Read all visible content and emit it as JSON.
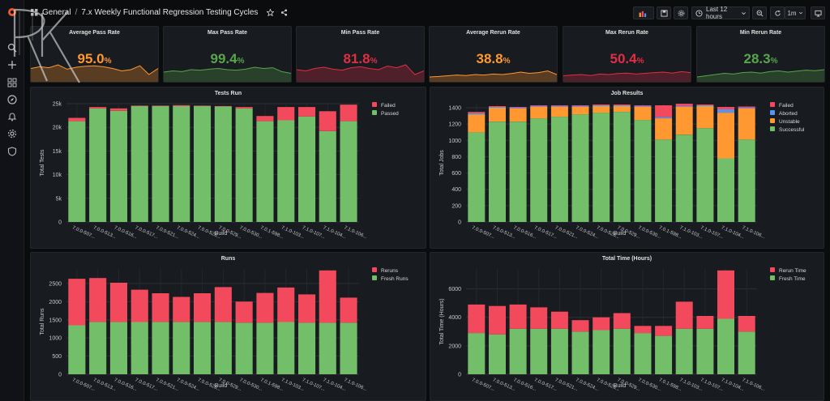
{
  "header": {
    "folder": "General",
    "separator": "/",
    "dashboard_title": "7.x Weekly Functional Regression Testing Cycles",
    "time_range": "Last 12 hours",
    "refresh_interval": "1m"
  },
  "stats": [
    {
      "title": "Average Pass Rate",
      "value": "95.0",
      "unit": "%",
      "color": "#ff9830",
      "spark": [
        0.55,
        0.62,
        0.58,
        0.7,
        0.52,
        0.6,
        0.64,
        0.66,
        0.62,
        0.55,
        0.45,
        0.5,
        0.66,
        0.3,
        0.55
      ]
    },
    {
      "title": "Max Pass Rate",
      "value": "99.4",
      "unit": "%",
      "color": "#56a64b",
      "spark": [
        0.4,
        0.45,
        0.42,
        0.5,
        0.48,
        0.52,
        0.55,
        0.5,
        0.48,
        0.52,
        0.6,
        0.55,
        0.58,
        0.42,
        0.35
      ]
    },
    {
      "title": "Min Pass Rate",
      "value": "81.8",
      "unit": "%",
      "color": "#e02f44",
      "spark": [
        0.5,
        0.45,
        0.55,
        0.6,
        0.52,
        0.48,
        0.58,
        0.62,
        0.55,
        0.5,
        0.65,
        0.58,
        0.7,
        0.3,
        0.45
      ]
    },
    {
      "title": "Average Rerun Rate",
      "value": "38.8",
      "unit": "%",
      "color": "#ff9830",
      "spark": [
        0.2,
        0.22,
        0.25,
        0.28,
        0.26,
        0.3,
        0.28,
        0.32,
        0.3,
        0.34,
        0.4,
        0.35,
        0.38,
        0.45,
        0.3
      ]
    },
    {
      "title": "Max Rerun Rate",
      "value": "50.4",
      "unit": "%",
      "color": "#e02f44",
      "spark": [
        0.25,
        0.28,
        0.3,
        0.26,
        0.32,
        0.3,
        0.34,
        0.36,
        0.32,
        0.35,
        0.38,
        0.4,
        0.36,
        0.42,
        0.38
      ]
    },
    {
      "title": "Min Rerun Rate",
      "value": "28.3",
      "unit": "%",
      "color": "#56a64b",
      "spark": [
        0.2,
        0.25,
        0.3,
        0.35,
        0.32,
        0.38,
        0.4,
        0.36,
        0.42,
        0.45,
        0.4,
        0.44,
        0.48,
        0.46,
        0.5
      ]
    }
  ],
  "chart_data": [
    {
      "type": "bar",
      "title": "Tests Run",
      "xlabel": "Build",
      "ylabel": "Total Tests",
      "ylim": [
        0,
        25000
      ],
      "yticks": [
        0,
        5000,
        10000,
        15000,
        20000,
        25000
      ],
      "ytick_labels": [
        "0",
        "5k",
        "10k",
        "15k",
        "20k",
        "25k"
      ],
      "categories": [
        "7.0.0-507...",
        "7.0.0-513...",
        "7.0.0-516...",
        "7.0.0-517...",
        "7.0.0-521...",
        "7.0.0-524...",
        "7.0.0-526...",
        "7.0.0-529...",
        "7.0.0-530...",
        "7.0.1-598...",
        "7.1.0-103...",
        "7.1.0-107...",
        "7.1.0-104...",
        "7.1.0-106..."
      ],
      "series": [
        {
          "name": "Passed",
          "color": "#73bf69",
          "values": [
            21300,
            24000,
            23500,
            24500,
            24500,
            24500,
            24500,
            24400,
            24000,
            21300,
            21500,
            22300,
            19200,
            21300
          ]
        },
        {
          "name": "Failed",
          "color": "#f2495c",
          "values": [
            700,
            300,
            500,
            100,
            100,
            200,
            100,
            100,
            300,
            1100,
            2800,
            2000,
            4200,
            3500
          ]
        }
      ],
      "legend": [
        "Failed",
        "Passed"
      ]
    },
    {
      "type": "bar",
      "title": "Job Results",
      "xlabel": "Build",
      "ylabel": "Total Jobs",
      "ylim": [
        0,
        1450
      ],
      "yticks": [
        0,
        200,
        400,
        600,
        800,
        1000,
        1200,
        1400
      ],
      "ytick_labels": [
        "0",
        "200",
        "400",
        "600",
        "800",
        "1000",
        "1200",
        "1400"
      ],
      "categories": [
        "7.0.0-507...",
        "7.0.0-513...",
        "7.0.0-516...",
        "7.0.0-517...",
        "7.0.0-521...",
        "7.0.0-524...",
        "7.0.0-526...",
        "7.0.0-529...",
        "7.0.0-530...",
        "7.0.1-598...",
        "7.1.0-103...",
        "7.1.0-107...",
        "7.1.0-104...",
        "7.1.0-106..."
      ],
      "series": [
        {
          "name": "Successful",
          "color": "#73bf69",
          "values": [
            1100,
            1230,
            1230,
            1270,
            1290,
            1320,
            1340,
            1350,
            1250,
            1010,
            1070,
            1150,
            780,
            1010
          ]
        },
        {
          "name": "Unstable",
          "color": "#ff9830",
          "values": [
            220,
            170,
            160,
            140,
            120,
            90,
            80,
            70,
            160,
            260,
            340,
            270,
            560,
            380
          ]
        },
        {
          "name": "Aborted",
          "color": "#5794f2",
          "values": [
            15,
            10,
            10,
            10,
            10,
            10,
            10,
            10,
            10,
            15,
            10,
            10,
            40,
            10
          ]
        },
        {
          "name": "Failed",
          "color": "#f2495c",
          "values": [
            15,
            10,
            10,
            10,
            10,
            10,
            10,
            10,
            10,
            145,
            30,
            10,
            30,
            15
          ]
        }
      ],
      "legend": [
        "Failed",
        "Aborted",
        "Unstable",
        "Successful"
      ]
    },
    {
      "type": "bar",
      "title": "Runs",
      "xlabel": "Build",
      "ylabel": "Total Runs",
      "ylim": [
        0,
        2900
      ],
      "yticks": [
        0,
        500,
        1000,
        1500,
        2000,
        2500
      ],
      "ytick_labels": [
        "0",
        "500",
        "1000",
        "1500",
        "2000",
        "2500"
      ],
      "categories": [
        "7.0.0-507...",
        "7.0.0-513...",
        "7.0.0-516...",
        "7.0.0-517...",
        "7.0.0-521...",
        "7.0.0-524...",
        "7.0.0-526...",
        "7.0.0-529...",
        "7.0.0-530...",
        "7.0.1-598...",
        "7.1.0-103...",
        "7.1.0-107...",
        "7.1.0-104...",
        "7.1.0-106..."
      ],
      "series": [
        {
          "name": "Fresh Runs",
          "color": "#73bf69",
          "values": [
            1350,
            1440,
            1440,
            1440,
            1440,
            1440,
            1440,
            1440,
            1420,
            1420,
            1440,
            1420,
            1420,
            1420
          ]
        },
        {
          "name": "Reruns",
          "color": "#f2495c",
          "values": [
            1280,
            1210,
            1080,
            890,
            790,
            690,
            790,
            960,
            580,
            820,
            950,
            780,
            1440,
            690
          ]
        }
      ],
      "legend": [
        "Reruns",
        "Fresh Runs"
      ]
    },
    {
      "type": "bar",
      "title": "Total Time (Hours)",
      "xlabel": "Build",
      "ylabel": "Total Time (Hours)",
      "ylim": [
        0,
        7400
      ],
      "yticks": [
        0,
        2000,
        4000,
        6000
      ],
      "ytick_labels": [
        "0",
        "2000",
        "4000",
        "6000"
      ],
      "categories": [
        "7.0.0-507...",
        "7.0.0-513...",
        "7.0.0-516...",
        "7.0.0-517...",
        "7.0.0-521...",
        "7.0.0-524...",
        "7.0.0-526...",
        "7.0.0-529...",
        "7.0.0-530...",
        "7.0.1-598...",
        "7.1.0-103...",
        "7.1.0-107...",
        "7.1.0-104...",
        "7.1.0-106..."
      ],
      "series": [
        {
          "name": "Fresh Time",
          "color": "#73bf69",
          "values": [
            2900,
            2800,
            3200,
            3200,
            3200,
            3000,
            3100,
            3200,
            2900,
            2700,
            3200,
            3200,
            3900,
            3000
          ]
        },
        {
          "name": "Rerun Time",
          "color": "#f2495c",
          "values": [
            2000,
            2000,
            1700,
            1500,
            1200,
            800,
            900,
            1100,
            500,
            700,
            1900,
            900,
            3400,
            1100
          ]
        }
      ],
      "legend": [
        "Rerun Time",
        "Fresh Time"
      ]
    }
  ]
}
